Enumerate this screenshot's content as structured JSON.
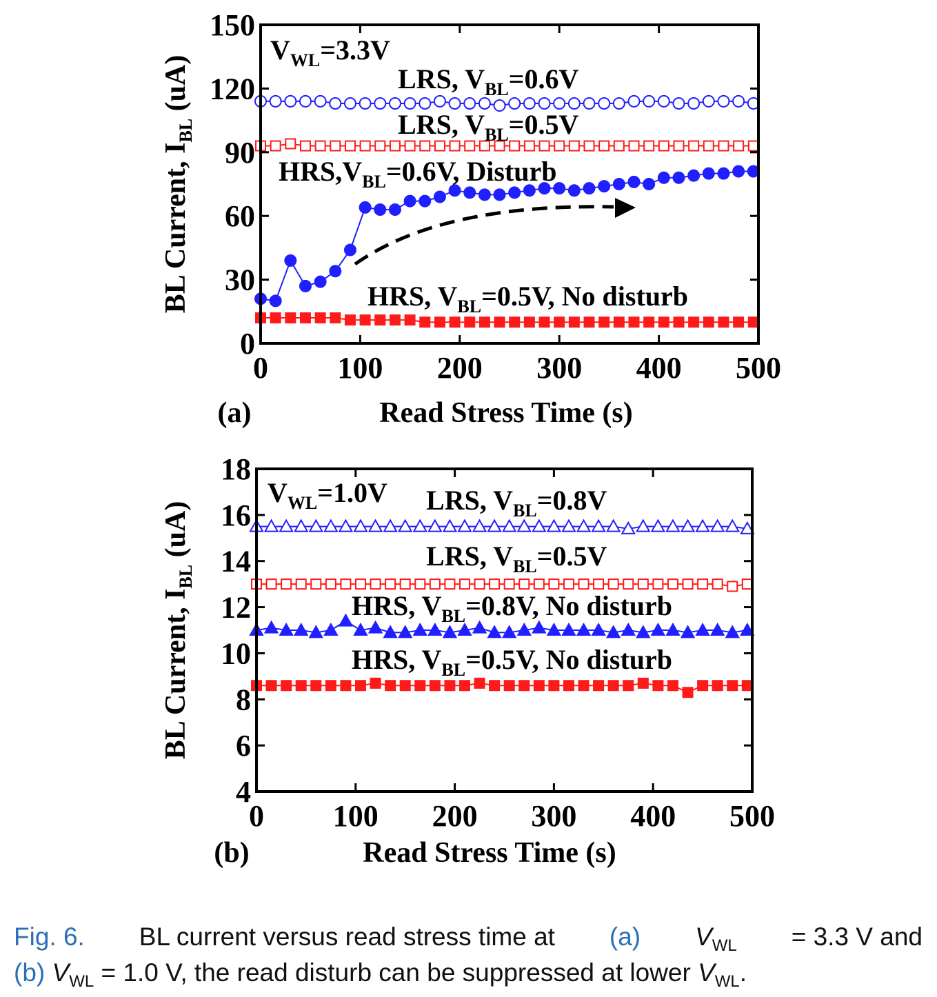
{
  "charts": [
    {
      "panel_label": "(a)",
      "xlabel": "Read Stress Time (s)",
      "ylabel_main": "BL Current, I",
      "ylabel_sub": "BL",
      "ylabel_unit": " (uA)",
      "xlim": [
        0,
        500
      ],
      "ylim": [
        0,
        150
      ],
      "xticks": [
        "0",
        "100",
        "200",
        "300",
        "400",
        "500"
      ],
      "yticks": [
        "0",
        "30",
        "60",
        "90",
        "120",
        "150"
      ],
      "annotations": [
        {
          "main": "V",
          "sub": "WL",
          "rest": "=3.3V"
        },
        {
          "main": "LRS, V",
          "sub": "BL",
          "rest": "=0.6V"
        },
        {
          "main": "LRS, V",
          "sub": "BL",
          "rest": "=0.5V"
        },
        {
          "main": "HRS,V",
          "sub": "BL",
          "rest": "=0.6V, Disturb"
        },
        {
          "main": "HRS, V",
          "sub": "BL",
          "rest": "=0.5V, No disturb"
        }
      ]
    },
    {
      "panel_label": "(b)",
      "xlabel": "Read Stress Time (s)",
      "ylabel_main": "BL Current, I",
      "ylabel_sub": "BL",
      "ylabel_unit": " (uA)",
      "xlim": [
        0,
        500
      ],
      "ylim": [
        4,
        18
      ],
      "xticks": [
        "0",
        "100",
        "200",
        "300",
        "400",
        "500"
      ],
      "yticks": [
        "4",
        "6",
        "8",
        "10",
        "12",
        "14",
        "16",
        "18"
      ],
      "annotations": [
        {
          "main": "V",
          "sub": "WL",
          "rest": "=1.0V"
        },
        {
          "main": "LRS, V",
          "sub": "BL",
          "rest": "=0.8V"
        },
        {
          "main": "LRS, V",
          "sub": "BL",
          "rest": "=0.5V"
        },
        {
          "main": "HRS, V",
          "sub": "BL",
          "rest": "=0.8V, No disturb"
        },
        {
          "main": "HRS, V",
          "sub": "BL",
          "rest": "=0.5V, No disturb"
        }
      ]
    }
  ],
  "chart_data": [
    {
      "type": "scatter",
      "xlim": [
        0,
        500
      ],
      "ylim": [
        0,
        150
      ],
      "colors": {
        "blue": "#1f1fff",
        "red": "#ff1a1a"
      },
      "series": [
        {
          "marker": "circle-open",
          "color": "#1f1fff",
          "x": [
            0,
            15,
            30,
            45,
            60,
            75,
            90,
            105,
            120,
            135,
            150,
            165,
            180,
            195,
            210,
            225,
            240,
            255,
            270,
            285,
            300,
            315,
            330,
            345,
            360,
            375,
            390,
            405,
            420,
            435,
            450,
            465,
            480,
            495
          ],
          "y": [
            114,
            114,
            114,
            114,
            114,
            113,
            113,
            113,
            113,
            113,
            113,
            113,
            114,
            113,
            113,
            113,
            112,
            113,
            113,
            113,
            113,
            113,
            113,
            113,
            113,
            114,
            114,
            114,
            113,
            113,
            114,
            114,
            114,
            113
          ]
        },
        {
          "marker": "square-open",
          "color": "#ff1a1a",
          "x": [
            0,
            15,
            30,
            45,
            60,
            75,
            90,
            105,
            120,
            135,
            150,
            165,
            180,
            195,
            210,
            225,
            240,
            255,
            270,
            285,
            300,
            315,
            330,
            345,
            360,
            375,
            390,
            405,
            420,
            435,
            450,
            465,
            480,
            495
          ],
          "y": [
            93,
            93,
            94,
            93,
            93,
            93,
            93,
            93,
            93,
            93,
            93,
            93,
            93,
            93,
            93,
            93,
            93,
            93,
            93,
            93,
            93,
            93,
            93,
            93,
            93,
            93,
            93,
            93,
            93,
            93,
            93,
            93,
            93,
            93
          ]
        },
        {
          "marker": "circle-filled",
          "color": "#1f1fff",
          "x": [
            0,
            15,
            30,
            45,
            60,
            75,
            90,
            105,
            120,
            135,
            150,
            165,
            180,
            195,
            210,
            225,
            240,
            255,
            270,
            285,
            300,
            315,
            330,
            345,
            360,
            375,
            390,
            405,
            420,
            435,
            450,
            465,
            480,
            495
          ],
          "y": [
            21,
            20,
            39,
            27,
            29,
            34,
            44,
            64,
            63,
            63,
            67,
            67,
            69,
            72,
            71,
            70,
            70,
            71,
            72,
            73,
            73,
            72,
            73,
            74,
            75,
            76,
            75,
            78,
            78,
            79,
            80,
            80,
            81,
            81
          ]
        },
        {
          "marker": "square-filled",
          "color": "#ff1a1a",
          "x": [
            0,
            15,
            30,
            45,
            60,
            75,
            90,
            105,
            120,
            135,
            150,
            165,
            180,
            195,
            210,
            225,
            240,
            255,
            270,
            285,
            300,
            315,
            330,
            345,
            360,
            375,
            390,
            405,
            420,
            435,
            450,
            465,
            480,
            495
          ],
          "y": [
            12,
            12,
            12,
            12,
            12,
            12,
            11,
            11,
            11,
            11,
            11,
            10,
            10,
            10,
            10,
            10,
            10,
            10,
            10,
            10,
            10,
            10,
            10,
            10,
            10,
            10,
            10,
            10,
            10,
            10,
            10,
            10,
            10,
            10
          ]
        }
      ]
    },
    {
      "type": "scatter",
      "xlim": [
        0,
        500
      ],
      "ylim": [
        4,
        18
      ],
      "colors": {
        "blue": "#1f1fff",
        "red": "#ff1a1a"
      },
      "series": [
        {
          "marker": "triangle-open",
          "color": "#1f1fff",
          "x": [
            0,
            15,
            30,
            45,
            60,
            75,
            90,
            105,
            120,
            135,
            150,
            165,
            180,
            195,
            210,
            225,
            240,
            255,
            270,
            285,
            300,
            315,
            330,
            345,
            360,
            375,
            390,
            405,
            420,
            435,
            450,
            465,
            480,
            495
          ],
          "y": [
            15.5,
            15.5,
            15.5,
            15.5,
            15.5,
            15.5,
            15.5,
            15.5,
            15.5,
            15.5,
            15.5,
            15.5,
            15.5,
            15.5,
            15.5,
            15.5,
            15.5,
            15.5,
            15.5,
            15.5,
            15.5,
            15.5,
            15.5,
            15.5,
            15.5,
            15.4,
            15.5,
            15.5,
            15.5,
            15.5,
            15.5,
            15.5,
            15.5,
            15.4
          ]
        },
        {
          "marker": "square-open",
          "color": "#ff1a1a",
          "x": [
            0,
            15,
            30,
            45,
            60,
            75,
            90,
            105,
            120,
            135,
            150,
            165,
            180,
            195,
            210,
            225,
            240,
            255,
            270,
            285,
            300,
            315,
            330,
            345,
            360,
            375,
            390,
            405,
            420,
            435,
            450,
            465,
            480,
            495
          ],
          "y": [
            13,
            13,
            13,
            13,
            13,
            13,
            13,
            13,
            13,
            13,
            13,
            13,
            13,
            13,
            13,
            13,
            13,
            13,
            13,
            13,
            13,
            13,
            13,
            13,
            13,
            13,
            13,
            13,
            13,
            13,
            13,
            13,
            12.9,
            13
          ]
        },
        {
          "marker": "triangle-filled",
          "color": "#1f1fff",
          "x": [
            0,
            15,
            30,
            45,
            60,
            75,
            90,
            105,
            120,
            135,
            150,
            165,
            180,
            195,
            210,
            225,
            240,
            255,
            270,
            285,
            300,
            315,
            330,
            345,
            360,
            375,
            390,
            405,
            420,
            435,
            450,
            465,
            480,
            495
          ],
          "y": [
            11,
            11.1,
            11,
            11,
            10.9,
            11,
            11.4,
            11,
            11.1,
            10.9,
            10.9,
            11,
            11,
            10.9,
            11,
            11.1,
            10.9,
            10.9,
            11,
            11.1,
            11,
            11,
            11,
            11,
            10.9,
            11,
            10.9,
            11,
            11,
            10.9,
            11,
            11,
            10.9,
            11
          ]
        },
        {
          "marker": "square-filled",
          "color": "#ff1a1a",
          "x": [
            0,
            15,
            30,
            45,
            60,
            75,
            90,
            105,
            120,
            135,
            150,
            165,
            180,
            195,
            210,
            225,
            240,
            255,
            270,
            285,
            300,
            315,
            330,
            345,
            360,
            375,
            390,
            405,
            420,
            435,
            450,
            465,
            480,
            495
          ],
          "y": [
            8.6,
            8.6,
            8.6,
            8.6,
            8.6,
            8.6,
            8.6,
            8.6,
            8.7,
            8.6,
            8.6,
            8.6,
            8.6,
            8.6,
            8.6,
            8.7,
            8.6,
            8.6,
            8.6,
            8.6,
            8.6,
            8.6,
            8.6,
            8.6,
            8.6,
            8.6,
            8.7,
            8.6,
            8.6,
            8.3,
            8.6,
            8.6,
            8.6,
            8.6
          ]
        }
      ]
    }
  ],
  "caption": {
    "fig_label": "Fig. 6.",
    "text1": "BL current versus read stress time at",
    "ref_a": "(a)",
    "v": "V",
    "vsub": "WL",
    "eq1": "= 3.3 V and",
    "ref_b": "(b)",
    "eq2": "= 1.0 V, the read disturb can be suppressed at lower",
    "end": "."
  }
}
